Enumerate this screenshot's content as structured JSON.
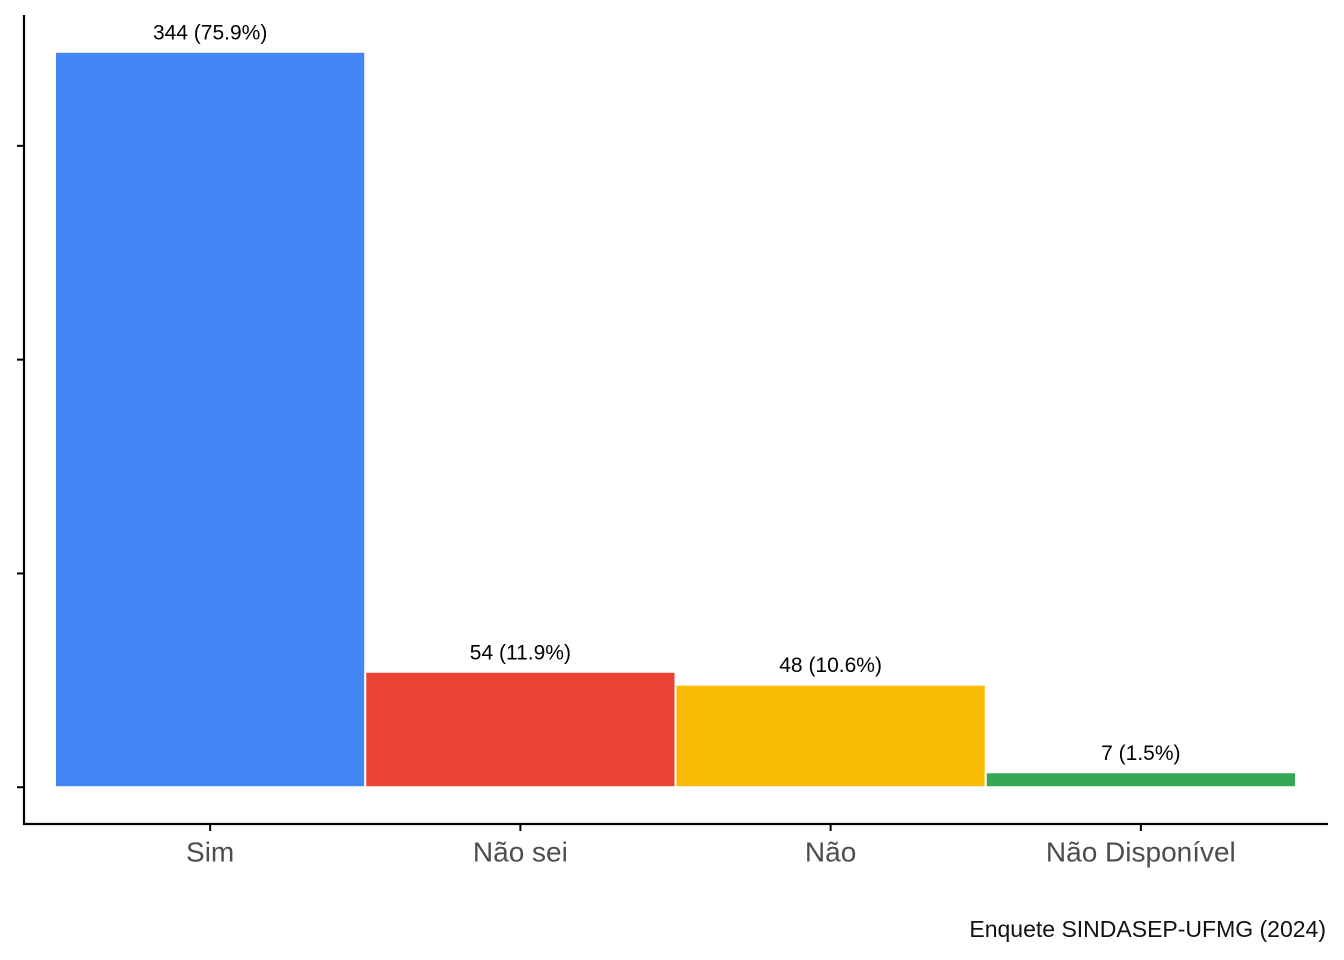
{
  "chart_data": {
    "type": "bar",
    "categories": [
      "Sim",
      "Não sei",
      "Não",
      "Não Disponível"
    ],
    "values": [
      344,
      54,
      48,
      7
    ],
    "value_labels": [
      "344 (75.9%)",
      "54 (11.9%)",
      "48 (10.6%)",
      "7 (1.5%)"
    ],
    "colors": [
      "#4285F4",
      "#EA4335",
      "#FBBC04",
      "#34A853"
    ],
    "ylim": [
      -17.2,
      361.2
    ],
    "yticks": [
      0,
      100,
      200,
      300
    ],
    "ytick_labels": false,
    "grid": false,
    "caption": "Enquete SINDASEP-UFMG (2024)"
  }
}
